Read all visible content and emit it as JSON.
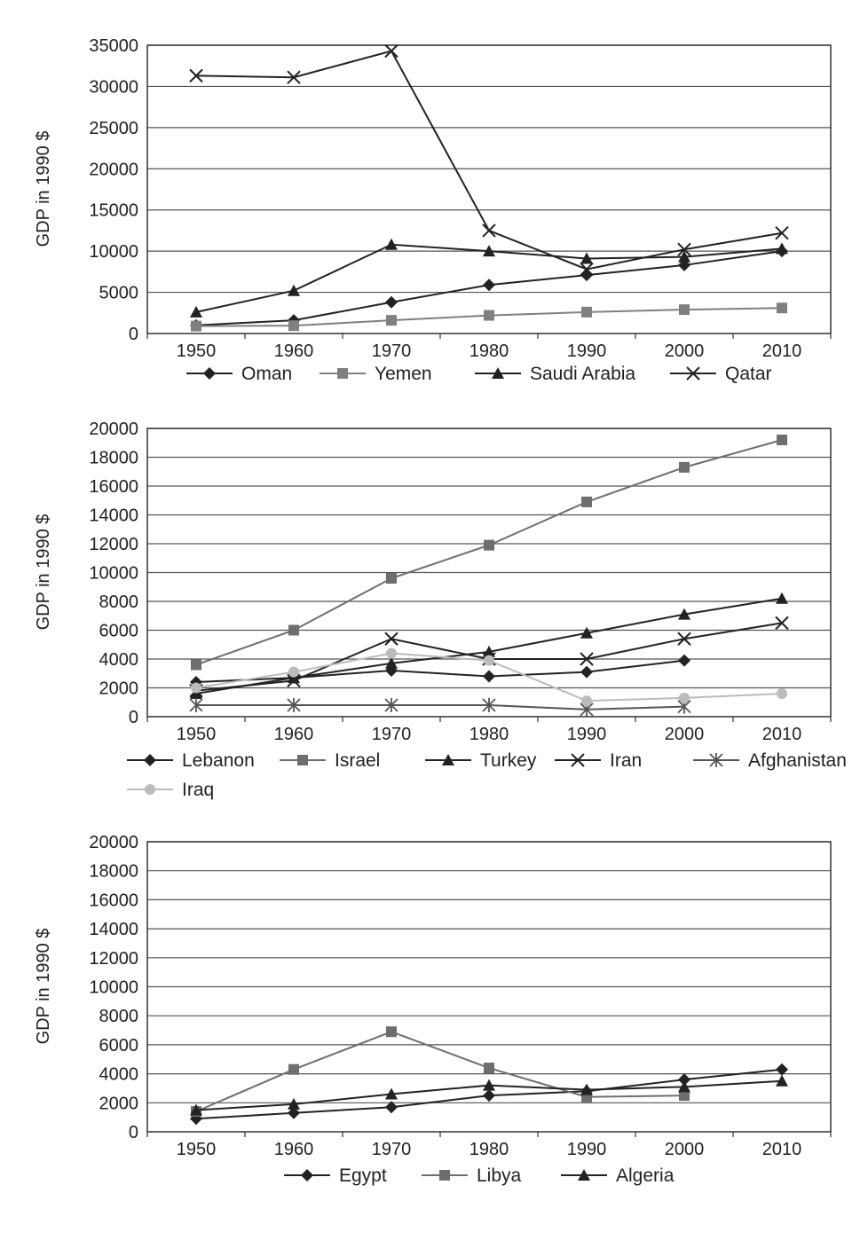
{
  "chart_data": [
    {
      "type": "line",
      "ylabel": "GDP in 1990 $",
      "x": [
        1950,
        1960,
        1970,
        1980,
        1990,
        2000,
        2010
      ],
      "ylim": [
        0,
        35000
      ],
      "yticks": [
        0,
        5000,
        10000,
        15000,
        20000,
        25000,
        30000,
        35000
      ],
      "grid": true,
      "legend_position": "bottom",
      "series": [
        {
          "name": "Oman",
          "marker": "diamond",
          "color": "#222222",
          "values": [
            1000,
            1600,
            3800,
            5900,
            7100,
            8300,
            10000
          ]
        },
        {
          "name": "Yemen",
          "marker": "square",
          "color": "#808080",
          "values": [
            900,
            950,
            1600,
            2200,
            2600,
            2900,
            3100
          ]
        },
        {
          "name": "Saudi Arabia",
          "marker": "triangle",
          "color": "#222222",
          "values": [
            2600,
            5200,
            10800,
            10000,
            9100,
            9300,
            10300
          ]
        },
        {
          "name": "Qatar",
          "marker": "x",
          "color": "#222222",
          "values": [
            31300,
            31100,
            34300,
            12500,
            7800,
            10200,
            12200
          ]
        }
      ]
    },
    {
      "type": "line",
      "ylabel": "GDP in 1990 $",
      "x": [
        1950,
        1960,
        1970,
        1980,
        1990,
        2000,
        2010
      ],
      "ylim": [
        0,
        20000
      ],
      "yticks": [
        0,
        2000,
        4000,
        6000,
        8000,
        10000,
        12000,
        14000,
        16000,
        18000,
        20000
      ],
      "grid": true,
      "legend_position": "bottom",
      "series": [
        {
          "name": "Lebanon",
          "marker": "diamond",
          "color": "#222222",
          "values": [
            2400,
            2700,
            3200,
            2800,
            3100,
            3900,
            null
          ]
        },
        {
          "name": "Israel",
          "marker": "square",
          "color": "#6e6e6e",
          "values": [
            3600,
            6000,
            9600,
            11900,
            14900,
            17300,
            19200
          ]
        },
        {
          "name": "Turkey",
          "marker": "triangle",
          "color": "#222222",
          "values": [
            1600,
            2700,
            3700,
            4500,
            5800,
            7100,
            8200
          ]
        },
        {
          "name": "Iran",
          "marker": "x",
          "color": "#222222",
          "values": [
            1800,
            2500,
            5400,
            4000,
            4000,
            5400,
            6500
          ]
        },
        {
          "name": "Afghanistan",
          "marker": "star",
          "color": "#555555",
          "values": [
            800,
            800,
            800,
            800,
            500,
            700,
            null
          ]
        },
        {
          "name": "Iraq",
          "marker": "circle",
          "color": "#bbbbbb",
          "values": [
            2000,
            3100,
            4400,
            3900,
            1100,
            1300,
            1600
          ]
        }
      ]
    },
    {
      "type": "line",
      "ylabel": "GDP in 1990 $",
      "x": [
        1950,
        1960,
        1970,
        1980,
        1990,
        2000,
        2010
      ],
      "ylim": [
        0,
        20000
      ],
      "yticks": [
        0,
        2000,
        4000,
        6000,
        8000,
        10000,
        12000,
        14000,
        16000,
        18000,
        20000
      ],
      "grid": true,
      "legend_position": "bottom",
      "series": [
        {
          "name": "Egypt",
          "marker": "diamond",
          "color": "#222222",
          "values": [
            900,
            1300,
            1700,
            2500,
            2800,
            3600,
            4300
          ]
        },
        {
          "name": "Libya",
          "marker": "square",
          "color": "#6e6e6e",
          "values": [
            1400,
            4300,
            6900,
            4400,
            2400,
            2500,
            null
          ]
        },
        {
          "name": "Algeria",
          "marker": "triangle",
          "color": "#222222",
          "values": [
            1500,
            1900,
            2600,
            3200,
            2900,
            3100,
            3500
          ]
        }
      ]
    }
  ]
}
